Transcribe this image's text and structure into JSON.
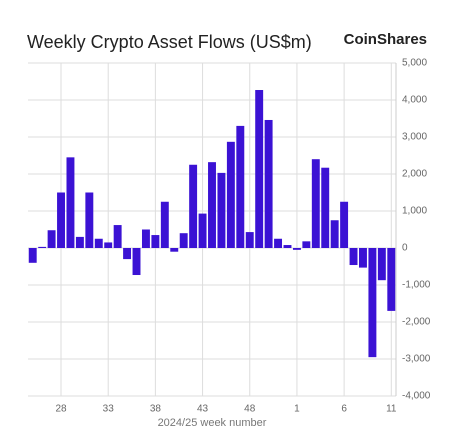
{
  "chart_data": {
    "type": "bar",
    "title": "Weekly Crypto Asset Flows (US$m)",
    "logo": "CoinShares",
    "x_label": "2024/25 week number",
    "categories": [
      null,
      null,
      null,
      "28",
      null,
      null,
      null,
      null,
      "33",
      null,
      null,
      null,
      null,
      "38",
      null,
      null,
      null,
      null,
      "43",
      null,
      null,
      null,
      null,
      "48",
      null,
      null,
      null,
      null,
      "1",
      null,
      null,
      null,
      null,
      "6",
      null,
      null,
      null,
      null,
      "11"
    ],
    "values": [
      -400,
      30,
      480,
      1500,
      2450,
      300,
      1500,
      250,
      150,
      620,
      -300,
      -730,
      500,
      350,
      1250,
      -100,
      400,
      2250,
      930,
      2320,
      2030,
      2870,
      3300,
      430,
      4270,
      3460,
      250,
      80,
      -50,
      180,
      2400,
      2170,
      750,
      1250,
      -460,
      -530,
      -2950,
      -870,
      -1700
    ],
    "color": "#3b12d4",
    "ylim": [
      -4000,
      5000
    ],
    "yticks": [
      {
        "value": -4000,
        "label": "-4,000"
      },
      {
        "value": -3000,
        "label": "-3,000"
      },
      {
        "value": -2000,
        "label": "-2,000"
      },
      {
        "value": -1000,
        "label": "-1,000"
      },
      0,
      {
        "value": 1000,
        "label": "1,000"
      },
      {
        "value": 2000,
        "label": "2,000"
      },
      {
        "value": 3000,
        "label": "3,000"
      },
      {
        "value": 4000,
        "label": "4,000"
      },
      {
        "value": 5000,
        "label": "5,000"
      }
    ],
    "grid": true
  }
}
